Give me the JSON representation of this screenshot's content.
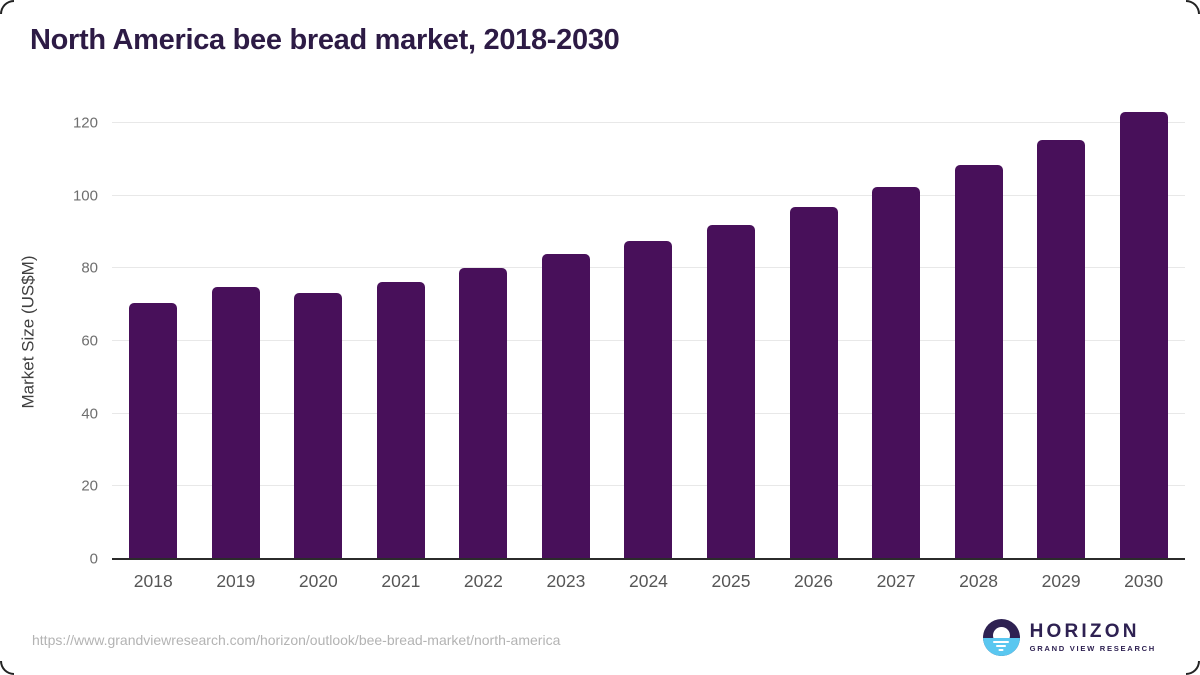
{
  "page": {
    "title": "North America bee bread market, 2018-2030",
    "source_url": "https://www.grandviewresearch.com/horizon/outlook/bee-bread-market/north-america"
  },
  "branding": {
    "logo_icon": "horizon-sunset-circle-icon",
    "brand_name": "HORIZON",
    "brand_subtitle": "GRAND VIEW RESEARCH"
  },
  "chart_data": {
    "type": "bar",
    "title": "North America bee bread market, 2018-2030",
    "categories": [
      "2018",
      "2019",
      "2020",
      "2021",
      "2022",
      "2023",
      "2024",
      "2025",
      "2026",
      "2027",
      "2028",
      "2029",
      "2030"
    ],
    "values": [
      70.6,
      74.8,
      73.2,
      76.4,
      80.2,
      83.9,
      87.5,
      92.1,
      97.0,
      102.5,
      108.5,
      115.4,
      123.1
    ],
    "xlabel": "",
    "ylabel": "Market Size (US$M)",
    "ylim": [
      0,
      125
    ],
    "yticks": [
      0,
      20,
      40,
      60,
      80,
      100,
      120
    ],
    "grid": "horizontal",
    "legend": false,
    "bar_color": "#48105a"
  },
  "colors": {
    "title": "#2d1b45",
    "bar": "#48105a",
    "axis_line": "#2b2b2b",
    "gridline": "#e8e8e8",
    "tick_text": "#6e6e6e",
    "url_text": "#b3b3b3",
    "logo_dark": "#2e2152",
    "logo_blue": "#5ac7f0"
  }
}
